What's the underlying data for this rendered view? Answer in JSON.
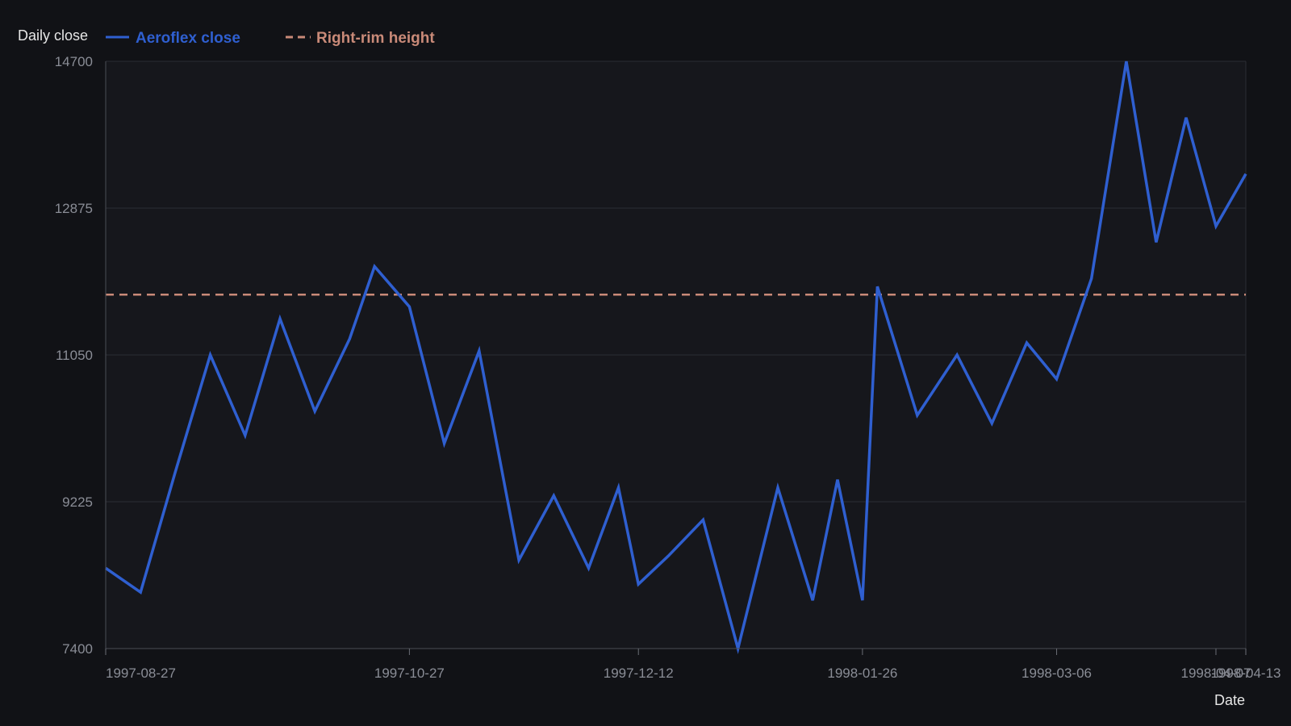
{
  "chart_data": {
    "type": "line",
    "ylabel": "Daily close",
    "xlabel": "Date",
    "ylim": [
      7400,
      14700
    ],
    "yticks": [
      "14700",
      "12875",
      "11050",
      "9225",
      "7400"
    ],
    "xticks": [
      "1997-08-27",
      "1997-10-27",
      "1997-12-12",
      "1998-01-26",
      "1998-03-06",
      "1998-04-07",
      "1998-04-13"
    ],
    "grid": true,
    "legend_position": "top-left",
    "series": [
      {
        "name": "Aeroflex close",
        "color": "#2f5fd0",
        "style": "solid",
        "x": [
          "1997-08-27",
          "1997-09-03",
          "1997-09-10",
          "1997-09-17",
          "1997-09-24",
          "1997-10-01",
          "1997-10-08",
          "1997-10-15",
          "1997-10-20",
          "1997-10-27",
          "1997-11-03",
          "1997-11-10",
          "1997-11-18",
          "1997-11-25",
          "1997-12-02",
          "1997-12-08",
          "1997-12-12",
          "1997-12-18",
          "1997-12-25",
          "1998-01-01",
          "1998-01-09",
          "1998-01-16",
          "1998-01-21",
          "1998-01-26",
          "1998-01-29",
          "1998-02-06",
          "1998-02-14",
          "1998-02-21",
          "1998-02-28",
          "1998-03-06",
          "1998-03-13",
          "1998-03-20",
          "1998-03-26",
          "1998-04-01",
          "1998-04-07",
          "1998-04-13"
        ],
        "values": [
          8400,
          8100,
          9600,
          11050,
          10050,
          11500,
          10350,
          11250,
          12150,
          11650,
          9950,
          11100,
          8500,
          9300,
          8400,
          9400,
          8200,
          8550,
          9000,
          7400,
          9400,
          8000,
          9500,
          8000,
          11900,
          10300,
          11050,
          10200,
          11200,
          10750,
          12000,
          14700,
          12450,
          14000,
          12650,
          13300
        ]
      },
      {
        "name": "Right-rim height",
        "color": "#c98a78",
        "style": "dashed",
        "x": [
          "1997-08-27",
          "1998-04-13"
        ],
        "values": [
          11800,
          11800
        ]
      }
    ]
  }
}
